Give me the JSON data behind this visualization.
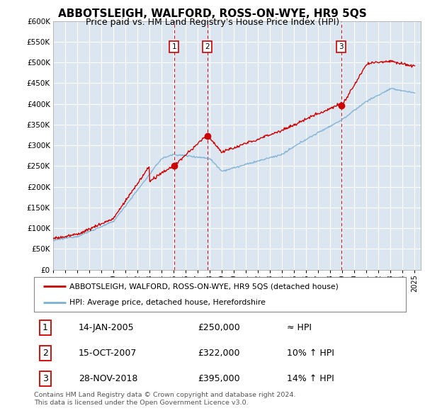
{
  "title": "ABBOTSLEIGH, WALFORD, ROSS-ON-WYE, HR9 5QS",
  "subtitle": "Price paid vs. HM Land Registry's House Price Index (HPI)",
  "ylim": [
    0,
    600000
  ],
  "yticks": [
    0,
    50000,
    100000,
    150000,
    200000,
    250000,
    300000,
    350000,
    400000,
    450000,
    500000,
    550000,
    600000
  ],
  "ytick_labels": [
    "£0",
    "£50K",
    "£100K",
    "£150K",
    "£200K",
    "£250K",
    "£300K",
    "£350K",
    "£400K",
    "£450K",
    "£500K",
    "£550K",
    "£600K"
  ],
  "background_color": "#ffffff",
  "plot_bg_color": "#dce6f1",
  "grid_color": "#ffffff",
  "red_line_color": "#cc0000",
  "blue_line_color": "#7bafd4",
  "vline_color": "#cc0000",
  "marker_color": "#cc0000",
  "sale_dates_num": [
    2005.04,
    2007.79,
    2018.91
  ],
  "sale_prices": [
    250000,
    322000,
    395000
  ],
  "sale_labels": [
    "1",
    "2",
    "3"
  ],
  "legend_label_red": "ABBOTSLEIGH, WALFORD, ROSS-ON-WYE, HR9 5QS (detached house)",
  "legend_label_blue": "HPI: Average price, detached house, Herefordshire",
  "table_entries": [
    {
      "num": "1",
      "date": "14-JAN-2005",
      "price": "£250,000",
      "hpi": "≈ HPI"
    },
    {
      "num": "2",
      "date": "15-OCT-2007",
      "price": "£322,000",
      "hpi": "10% ↑ HPI"
    },
    {
      "num": "3",
      "date": "28-NOV-2018",
      "price": "£395,000",
      "hpi": "14% ↑ HPI"
    }
  ],
  "footnote": "Contains HM Land Registry data © Crown copyright and database right 2024.\nThis data is licensed under the Open Government Licence v3.0.",
  "title_fontsize": 11,
  "subtitle_fontsize": 9
}
